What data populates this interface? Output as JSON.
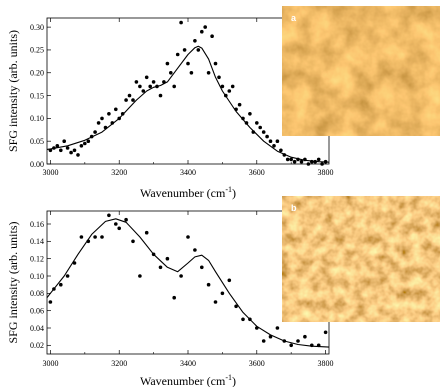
{
  "chart_data": [
    {
      "type": "scatter",
      "xlabel_main": "Wavenumber (cm",
      "xlabel_sup": "-1",
      "xlabel_close": ")",
      "ylabel": "SFG intensity (arb. units)",
      "xlim": [
        2990,
        3810
      ],
      "ylim": [
        0.0,
        0.32
      ],
      "xticks": [
        3000,
        3200,
        3400,
        3600,
        3800
      ],
      "yticks": [
        0.0,
        0.05,
        0.1,
        0.15,
        0.2,
        0.25,
        0.3
      ],
      "ytick_labels": [
        "0.00",
        "0.05",
        "0.10",
        "0.15",
        "0.20",
        "0.25",
        "0.30"
      ],
      "panel_label": "a",
      "inset": {
        "type": "afm-image",
        "description_color": "orange-brown",
        "base_color": "#c98a3c"
      },
      "series": [
        {
          "kind": "points",
          "x": [
            3000,
            3010,
            3020,
            3030,
            3040,
            3050,
            3060,
            3070,
            3080,
            3090,
            3100,
            3110,
            3120,
            3130,
            3140,
            3150,
            3160,
            3170,
            3180,
            3190,
            3200,
            3210,
            3220,
            3230,
            3240,
            3250,
            3260,
            3270,
            3280,
            3290,
            3300,
            3310,
            3320,
            3330,
            3340,
            3350,
            3360,
            3370,
            3380,
            3390,
            3400,
            3410,
            3420,
            3430,
            3440,
            3450,
            3460,
            3470,
            3480,
            3490,
            3500,
            3510,
            3520,
            3530,
            3540,
            3550,
            3560,
            3570,
            3580,
            3590,
            3600,
            3610,
            3620,
            3630,
            3640,
            3650,
            3660,
            3670,
            3680,
            3690,
            3700,
            3710,
            3720,
            3730,
            3740,
            3750,
            3760,
            3770,
            3780,
            3790,
            3800
          ],
          "y": [
            0.03,
            0.035,
            0.04,
            0.03,
            0.05,
            0.035,
            0.025,
            0.03,
            0.02,
            0.04,
            0.045,
            0.05,
            0.06,
            0.07,
            0.09,
            0.1,
            0.08,
            0.11,
            0.09,
            0.12,
            0.1,
            0.11,
            0.14,
            0.15,
            0.14,
            0.18,
            0.17,
            0.16,
            0.19,
            0.17,
            0.18,
            0.17,
            0.15,
            0.18,
            0.22,
            0.2,
            0.17,
            0.24,
            0.31,
            0.25,
            0.22,
            0.2,
            0.27,
            0.25,
            0.29,
            0.3,
            0.2,
            0.28,
            0.22,
            0.19,
            0.17,
            0.15,
            0.16,
            0.17,
            0.12,
            0.13,
            0.1,
            0.09,
            0.11,
            0.07,
            0.09,
            0.08,
            0.07,
            0.06,
            0.05,
            0.04,
            0.05,
            0.03,
            0.02,
            0.01,
            0.01,
            0.005,
            0.01,
            0.005,
            0.01,
            0.0,
            0.005,
            0.005,
            0.01,
            0.0,
            0.005
          ]
        },
        {
          "kind": "fit",
          "x": [
            2990,
            3000,
            3050,
            3100,
            3150,
            3200,
            3250,
            3280,
            3300,
            3320,
            3340,
            3370,
            3400,
            3420,
            3430,
            3440,
            3460,
            3480,
            3500,
            3540,
            3580,
            3620,
            3660,
            3700,
            3740,
            3780,
            3810
          ],
          "y": [
            0.032,
            0.033,
            0.04,
            0.052,
            0.07,
            0.1,
            0.14,
            0.16,
            0.168,
            0.172,
            0.18,
            0.21,
            0.24,
            0.255,
            0.258,
            0.254,
            0.23,
            0.19,
            0.16,
            0.115,
            0.08,
            0.05,
            0.028,
            0.015,
            0.008,
            0.005,
            0.004
          ]
        }
      ]
    },
    {
      "type": "scatter",
      "xlabel_main": "Wavenumber (cm",
      "xlabel_sup": "-1",
      "xlabel_close": ")",
      "ylabel": "SFG intensity (arb. units)",
      "xlim": [
        2990,
        3810
      ],
      "ylim": [
        0.01,
        0.175
      ],
      "xticks": [
        3000,
        3200,
        3400,
        3600,
        3800
      ],
      "yticks": [
        0.02,
        0.04,
        0.06,
        0.08,
        0.1,
        0.12,
        0.14,
        0.16
      ],
      "ytick_labels": [
        "0.02",
        "0.04",
        "0.06",
        "0.08",
        "0.10",
        "0.12",
        "0.14",
        "0.16"
      ],
      "panel_label": "b",
      "inset": {
        "type": "afm-image",
        "description_color": "orange-brown",
        "base_color": "#d4943f"
      },
      "series": [
        {
          "kind": "points",
          "x": [
            3000,
            3010,
            3030,
            3050,
            3070,
            3090,
            3110,
            3130,
            3150,
            3170,
            3190,
            3200,
            3220,
            3240,
            3260,
            3280,
            3300,
            3320,
            3340,
            3360,
            3380,
            3400,
            3420,
            3440,
            3460,
            3480,
            3500,
            3520,
            3540,
            3560,
            3580,
            3600,
            3620,
            3640,
            3660,
            3680,
            3700,
            3720,
            3740,
            3760,
            3780,
            3800
          ],
          "y": [
            0.07,
            0.085,
            0.09,
            0.1,
            0.115,
            0.145,
            0.14,
            0.145,
            0.145,
            0.17,
            0.16,
            0.155,
            0.165,
            0.14,
            0.1,
            0.15,
            0.125,
            0.11,
            0.12,
            0.075,
            0.1,
            0.145,
            0.13,
            0.11,
            0.09,
            0.07,
            0.08,
            0.095,
            0.065,
            0.05,
            0.05,
            0.04,
            0.025,
            0.03,
            0.04,
            0.025,
            0.02,
            0.025,
            0.03,
            0.02,
            0.02,
            0.035
          ]
        },
        {
          "kind": "fit",
          "x": [
            2990,
            3000,
            3040,
            3080,
            3120,
            3160,
            3190,
            3220,
            3260,
            3300,
            3340,
            3370,
            3400,
            3420,
            3440,
            3460,
            3480,
            3520,
            3560,
            3600,
            3640,
            3680,
            3720,
            3760,
            3810
          ],
          "y": [
            0.075,
            0.08,
            0.1,
            0.125,
            0.148,
            0.163,
            0.166,
            0.162,
            0.145,
            0.125,
            0.11,
            0.105,
            0.115,
            0.122,
            0.124,
            0.118,
            0.105,
            0.08,
            0.058,
            0.042,
            0.032,
            0.025,
            0.021,
            0.019,
            0.018
          ]
        }
      ]
    }
  ]
}
